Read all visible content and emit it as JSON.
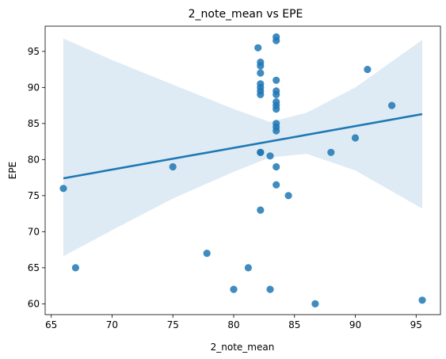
{
  "chart_data": {
    "type": "scatter",
    "title": "2_note_mean vs EPE",
    "xlabel": "2_note_mean",
    "ylabel": "EPE",
    "xlim": [
      64.5,
      97.0
    ],
    "ylim": [
      58.5,
      98.5
    ],
    "xticks": [
      65,
      70,
      75,
      80,
      85,
      90,
      95
    ],
    "yticks": [
      60,
      65,
      70,
      75,
      80,
      85,
      90,
      95
    ],
    "grid": false,
    "legend": "none",
    "colors": {
      "points": "#1f77b4",
      "line": "#1f77b4",
      "band": "#1f77b4"
    },
    "series": [
      {
        "points": [
          [
            66.0,
            76.0
          ],
          [
            67.0,
            65.0
          ],
          [
            75.0,
            79.0
          ],
          [
            77.8,
            67.0
          ],
          [
            80.0,
            62.0
          ],
          [
            81.2,
            65.0
          ],
          [
            82.0,
            95.5
          ],
          [
            82.2,
            93.5
          ],
          [
            82.2,
            93.0
          ],
          [
            82.2,
            92.0
          ],
          [
            82.2,
            90.5
          ],
          [
            82.2,
            90.0
          ],
          [
            82.2,
            89.5
          ],
          [
            82.2,
            89.0
          ],
          [
            82.2,
            81.0
          ],
          [
            82.2,
            81.0
          ],
          [
            82.2,
            73.0
          ],
          [
            83.0,
            80.5
          ],
          [
            83.0,
            62.0
          ],
          [
            83.5,
            97.0
          ],
          [
            83.5,
            96.5
          ],
          [
            83.5,
            91.0
          ],
          [
            83.5,
            89.5
          ],
          [
            83.5,
            89.0
          ],
          [
            83.5,
            88.0
          ],
          [
            83.5,
            87.5
          ],
          [
            83.5,
            87.0
          ],
          [
            83.5,
            85.0
          ],
          [
            83.5,
            84.5
          ],
          [
            83.5,
            84.0
          ],
          [
            83.5,
            79.0
          ],
          [
            83.5,
            76.5
          ],
          [
            84.5,
            75.0
          ],
          [
            86.7,
            60.0
          ],
          [
            88.0,
            81.0
          ],
          [
            90.0,
            83.0
          ],
          [
            91.0,
            92.5
          ],
          [
            93.0,
            87.5
          ],
          [
            95.5,
            60.5
          ]
        ]
      }
    ],
    "regression": {
      "x_range": [
        66.0,
        95.5
      ],
      "line": [
        [
          66.0,
          77.4
        ],
        [
          95.5,
          86.3
        ]
      ],
      "ci_upper": [
        [
          66.0,
          96.8
        ],
        [
          70.0,
          93.8
        ],
        [
          75.0,
          90.4
        ],
        [
          80.0,
          87.0
        ],
        [
          83.0,
          85.2
        ],
        [
          86.0,
          86.5
        ],
        [
          90.0,
          90.0
        ],
        [
          95.5,
          96.6
        ]
      ],
      "ci_lower": [
        [
          66.0,
          66.6
        ],
        [
          70.0,
          70.2
        ],
        [
          75.0,
          74.6
        ],
        [
          80.0,
          78.3
        ],
        [
          83.0,
          80.3
        ],
        [
          86.0,
          80.8
        ],
        [
          90.0,
          78.5
        ],
        [
          95.5,
          73.2
        ]
      ]
    }
  }
}
